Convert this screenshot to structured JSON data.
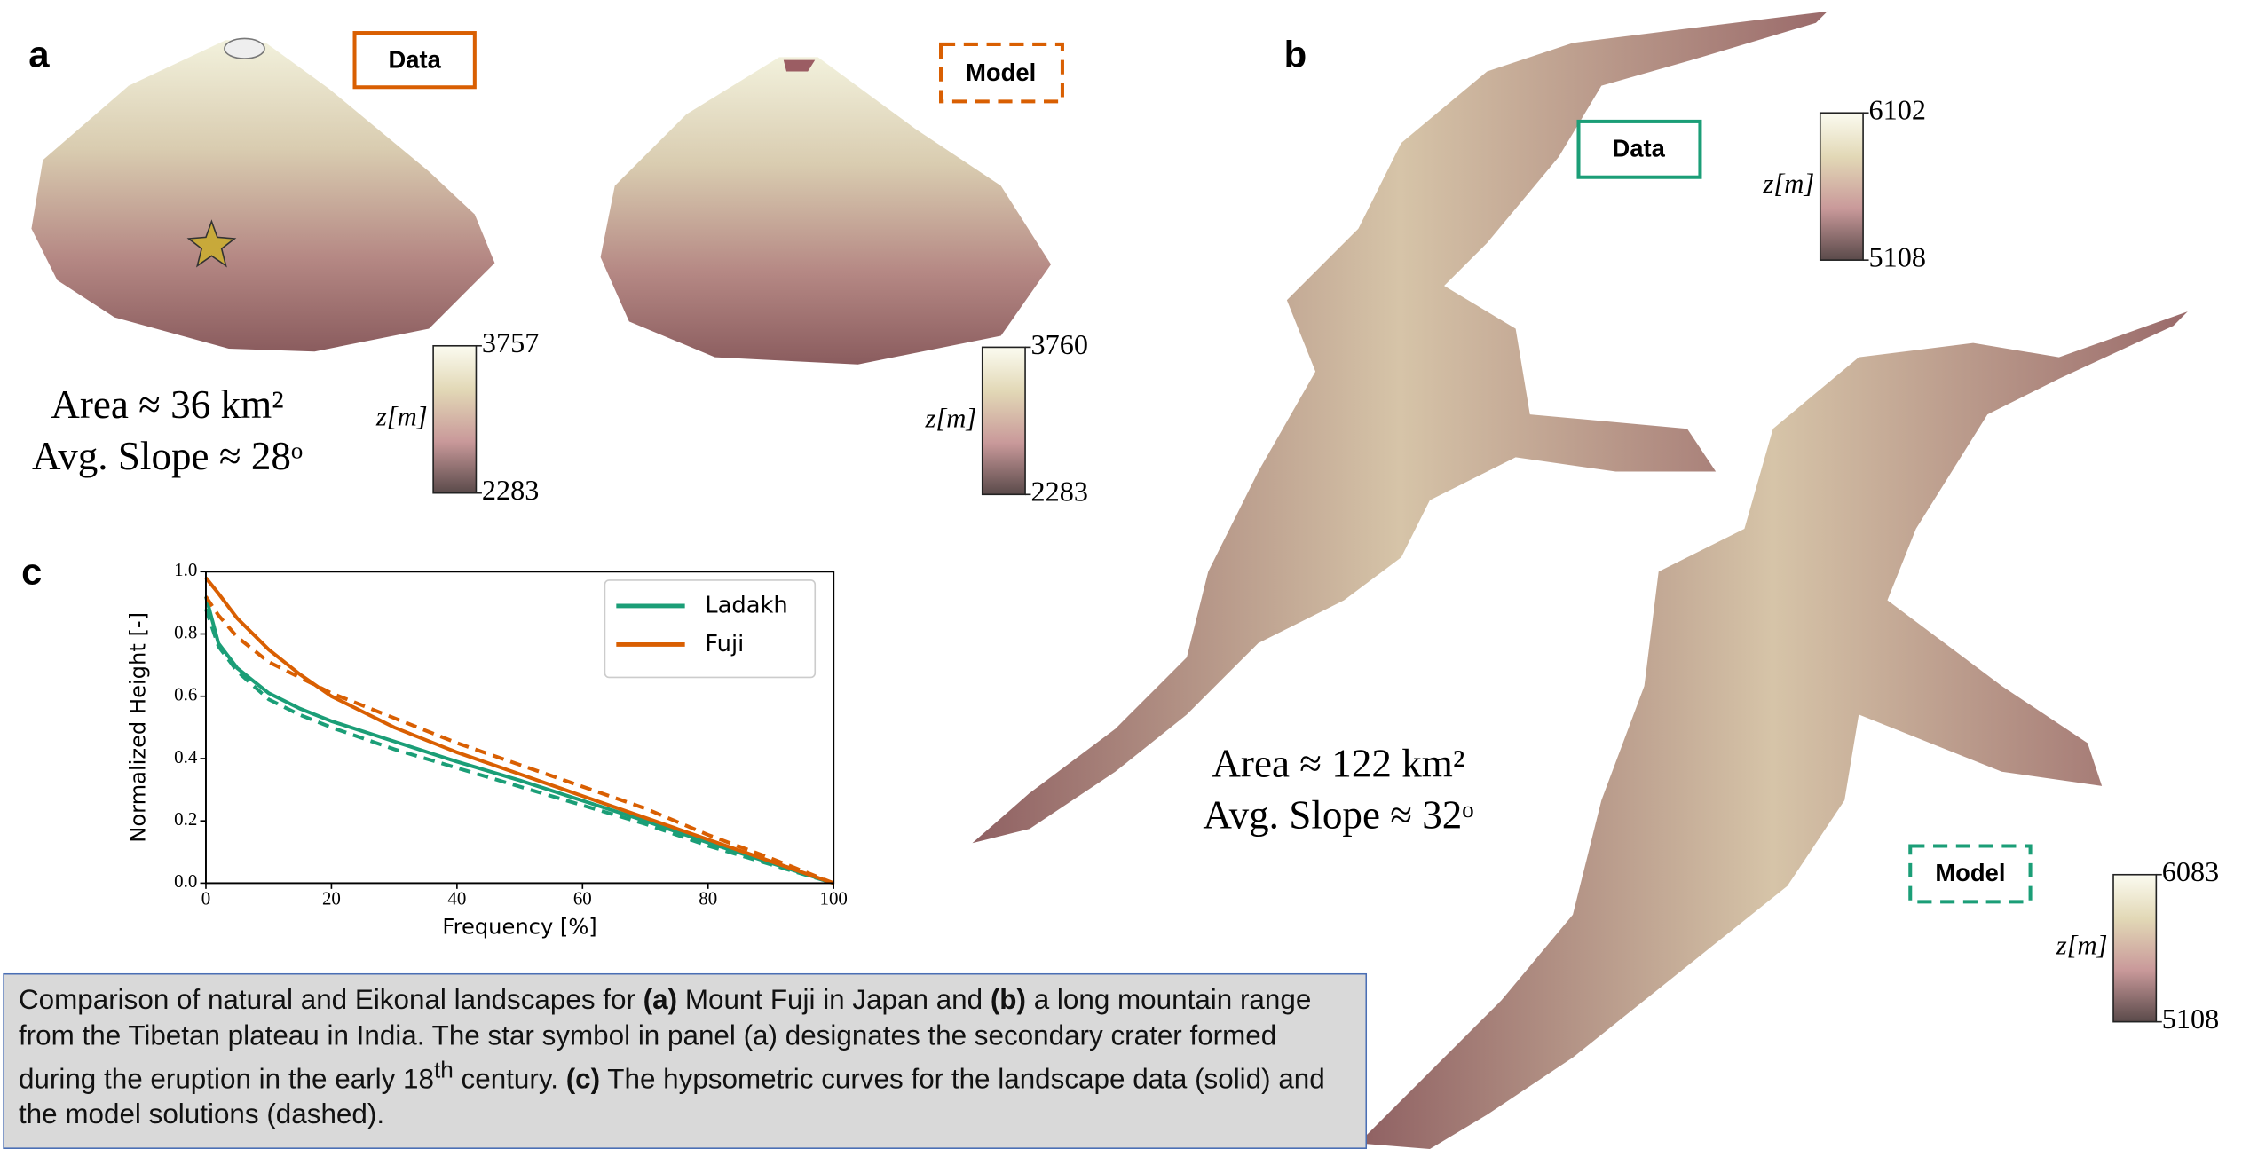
{
  "panels": {
    "a": {
      "label": "a",
      "data_box": "Data",
      "model_box": "Model",
      "area": "Area ≈ 36 km²",
      "slope": "Avg. Slope ≈ 28ᵒ"
    },
    "b": {
      "label": "b",
      "data_box": "Data",
      "model_box": "Model",
      "area": "Area ≈ 122 km²",
      "slope": "Avg. Slope ≈ 32ᵒ"
    },
    "c": {
      "label": "c"
    }
  },
  "colorbars": [
    {
      "label": "z[m]",
      "max": 3757,
      "min": 2283
    },
    {
      "label": "z[m]",
      "max": 3760,
      "min": 2283
    },
    {
      "label": "z[m]",
      "max": 6102,
      "min": 5108
    },
    {
      "label": "z[m]",
      "max": 6083,
      "min": 5108
    }
  ],
  "caption": {
    "parts": [
      "Comparison of natural and Eikonal landscapes for ",
      "(a)",
      " Mount Fuji in Japan and ",
      "(b)",
      " a long mountain range from the Tibetan plateau in India. The star symbol in panel (a) designates the secondary crater formed during the eruption in the early 18",
      "th",
      " century. ",
      "(c)",
      " The hypsometric curves for the landscape data (solid) and the model solutions (dashed)."
    ]
  },
  "chart_data": {
    "type": "line",
    "x_label": "Frequency [%]",
    "y_label": "Normalized Height [-]",
    "x": [
      0,
      2,
      5,
      10,
      15,
      20,
      30,
      40,
      50,
      60,
      70,
      80,
      90,
      100
    ],
    "series": [
      {
        "name": "Ladakh",
        "color": "#1b9e77",
        "values": [
          0.92,
          0.77,
          0.69,
          0.61,
          0.56,
          0.52,
          0.455,
          0.39,
          0.33,
          0.265,
          0.2,
          0.13,
          0.065,
          0
        ]
      },
      {
        "color": "#1b9e77",
        "dashed": true,
        "values": [
          0.88,
          0.76,
          0.68,
          0.59,
          0.54,
          0.5,
          0.43,
          0.37,
          0.31,
          0.25,
          0.19,
          0.12,
          0.06,
          0
        ]
      },
      {
        "name": "Fuji",
        "color": "#d95f02",
        "values": [
          0.98,
          0.93,
          0.85,
          0.75,
          0.67,
          0.6,
          0.5,
          0.42,
          0.35,
          0.28,
          0.21,
          0.14,
          0.07,
          0
        ]
      },
      {
        "color": "#d95f02",
        "dashed": true,
        "values": [
          0.92,
          0.86,
          0.79,
          0.71,
          0.66,
          0.61,
          0.53,
          0.45,
          0.38,
          0.31,
          0.24,
          0.155,
          0.08,
          0
        ]
      }
    ],
    "xlim": [
      0,
      100
    ],
    "ylim": [
      0,
      1
    ],
    "xticks": [
      0,
      20,
      40,
      60,
      80,
      100
    ],
    "yticks": [
      {
        "value": 0,
        "label": "0.0"
      },
      0.2,
      0.4,
      0.6,
      0.8,
      {
        "value": 1,
        "label": "1.0"
      }
    ],
    "legend": "upper right"
  }
}
